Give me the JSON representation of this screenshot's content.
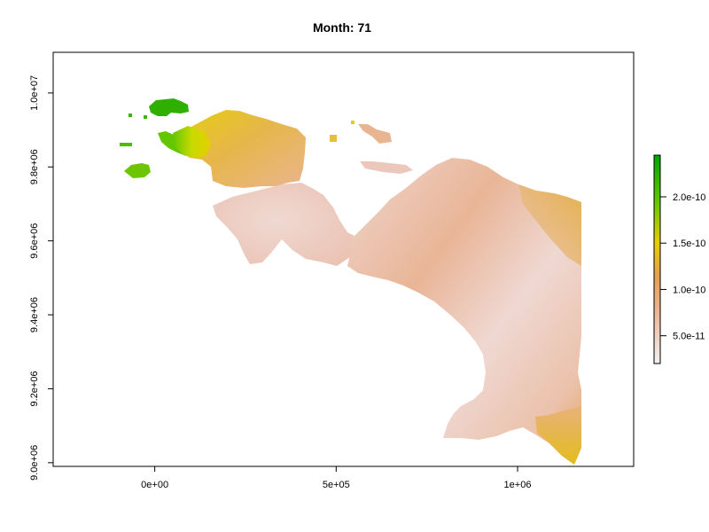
{
  "title": "Month: 71",
  "chart_data": {
    "type": "heatmap",
    "title": "Month: 71",
    "xlim": [
      -280000,
      1320000
    ],
    "ylim": [
      8990000,
      10110000
    ],
    "x_ticks": [
      {
        "value": 0,
        "label": "0e+00"
      },
      {
        "value": 500000,
        "label": "5e+05"
      },
      {
        "value": 1000000,
        "label": "1e+06"
      }
    ],
    "y_ticks": [
      {
        "value": 9000000,
        "label": "9.0e+06"
      },
      {
        "value": 9200000,
        "label": "9.2e+06"
      },
      {
        "value": 9400000,
        "label": "9.4e+06"
      },
      {
        "value": 9600000,
        "label": "9.6e+06"
      },
      {
        "value": 9800000,
        "label": "9.8e+06"
      },
      {
        "value": 10000000,
        "label": "1.0e+07"
      }
    ],
    "legend": {
      "placement": "right",
      "range": [
        2e-11,
        2.45e-10
      ],
      "colors": [
        "#F2F2F2",
        "#EBB596",
        "#E3A250",
        "#E6CE00",
        "#63C600",
        "#00A600"
      ],
      "ticks": [
        {
          "value": 5e-11,
          "label": "5.0e-11"
        },
        {
          "value": 1e-10,
          "label": "1.0e-10"
        },
        {
          "value": 1.5e-10,
          "label": "1.5e-10"
        },
        {
          "value": 2e-10,
          "label": "2.0e-10"
        }
      ]
    }
  }
}
